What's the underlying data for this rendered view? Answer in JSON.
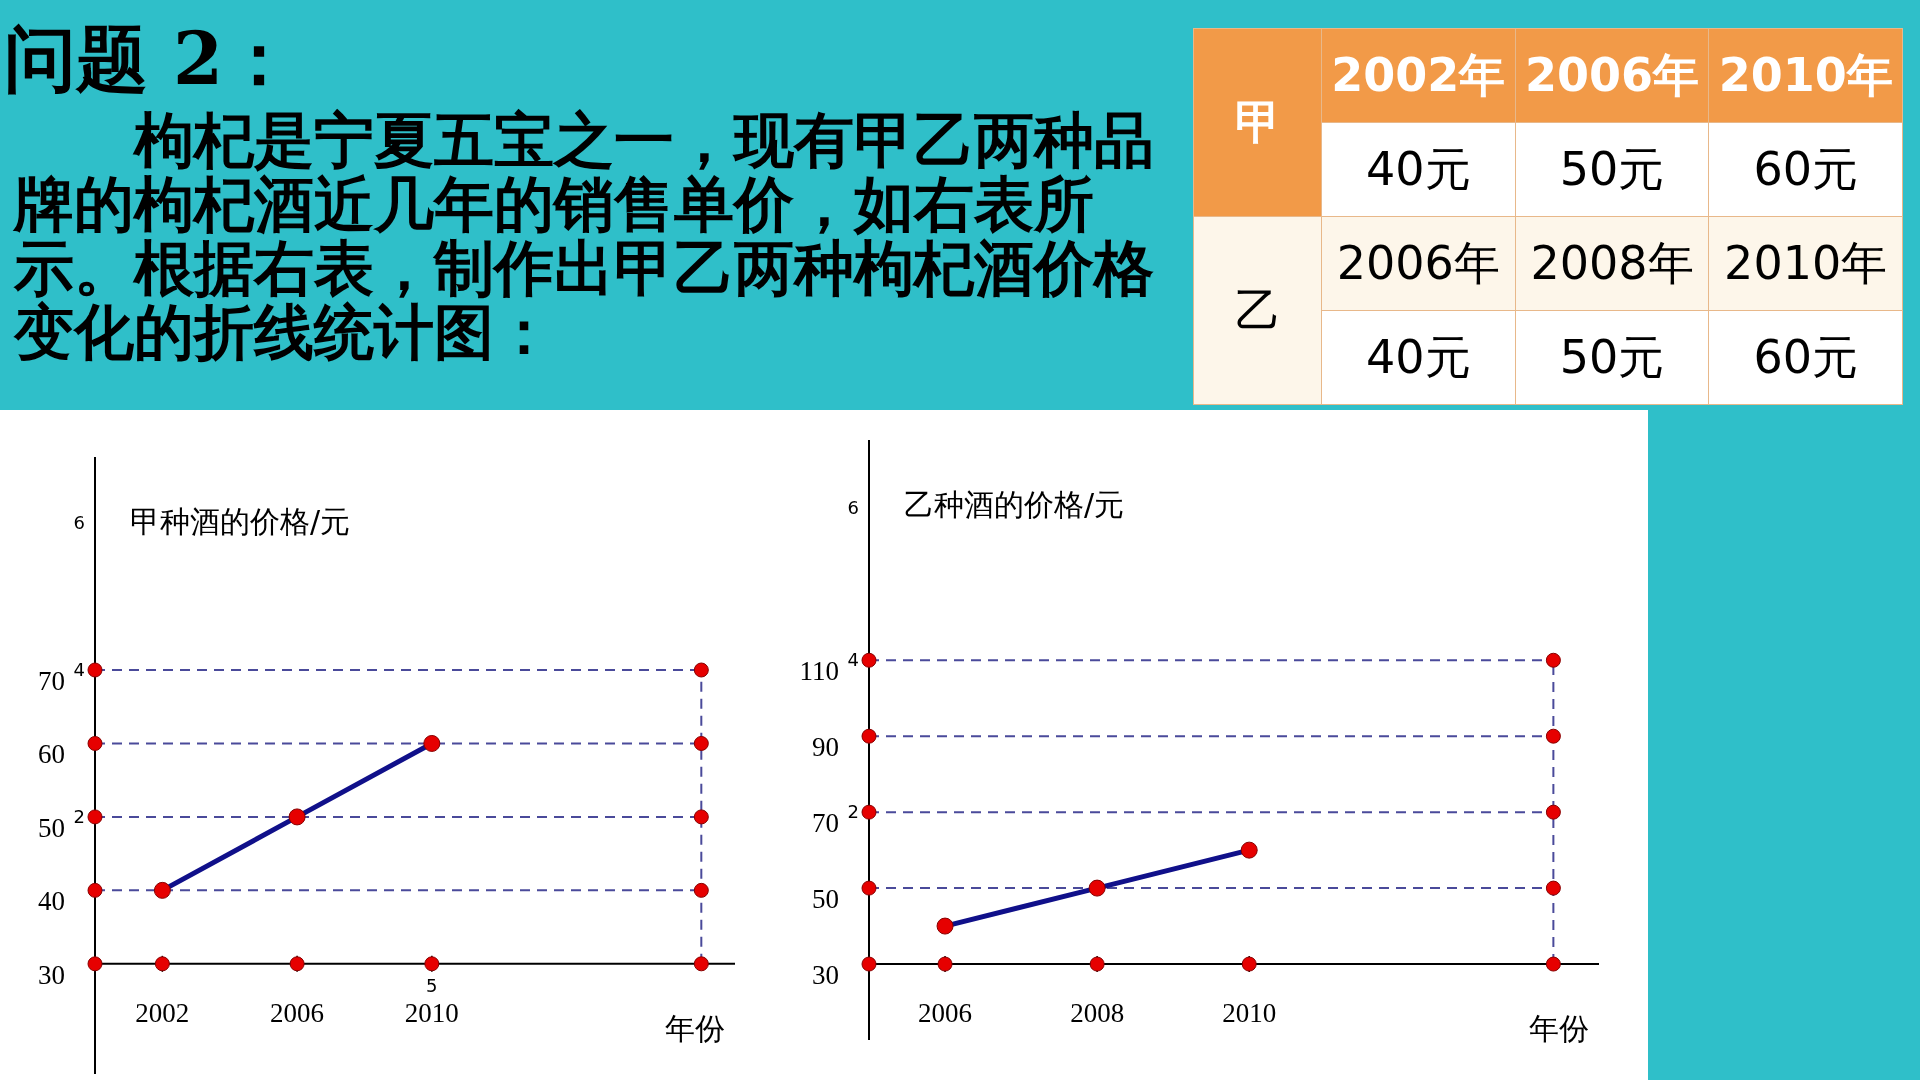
{
  "chart_data": [
    {
      "type": "other",
      "title": "问题 2：",
      "annotations": [
        "枸杞是宁夏五宝之一，现有甲乙两种品牌的枸杞酒近几年的销售单价，如右表所示。根据右表，制作出甲乙两种枸杞酒价格变化的折线统计图："
      ]
    },
    {
      "type": "other",
      "annotations": [
        "甲",
        "2002年",
        "2006年",
        "2010年",
        "40元",
        "50元",
        "60元",
        "乙",
        "2006年",
        "2008年",
        "2010年",
        "40元",
        "50元",
        "60元"
      ]
    },
    {
      "type": "line",
      "ylabel": "甲种酒的价格/元",
      "xlabel": "年份",
      "x": [
        2002,
        2006,
        2010
      ],
      "series": [
        {
          "color": "#10108a",
          "values": [
            40,
            50,
            60
          ]
        }
      ],
      "marker": "circle",
      "line_style": "solid",
      "xlim": [
        2000,
        2019
      ],
      "ylim": [
        15,
        99
      ],
      "xticks": [
        2002,
        2006,
        2010
      ],
      "yticks": [
        30,
        40,
        50,
        60,
        70
      ],
      "ref_lines": [
        {
          "axis": "y",
          "value": 40,
          "color": "#4a4a9a",
          "line_style": "dashed"
        },
        {
          "axis": "y",
          "value": 50,
          "color": "#4a4a9a",
          "line_style": "dashed"
        },
        {
          "axis": "y",
          "value": 60,
          "color": "#4a4a9a",
          "line_style": "dashed"
        },
        {
          "axis": "y",
          "value": 70,
          "color": "#4a4a9a",
          "line_style": "dashed"
        },
        {
          "axis": "x",
          "value": 2018,
          "color": "#4a4a9a",
          "line_style": "dashed"
        }
      ],
      "annotations": [
        "6",
        "4",
        "2",
        "5"
      ]
    },
    {
      "type": "line",
      "ylabel": "乙种酒的价格/元",
      "xlabel": "年份",
      "x": [
        2006,
        2008,
        2010
      ],
      "series": [
        {
          "color": "#10108a",
          "values": [
            40,
            50,
            60
          ]
        }
      ],
      "marker": "circle",
      "line_style": "solid",
      "xlim": [
        2005,
        2014.6
      ],
      "ylim": [
        10,
        168
      ],
      "xticks": [
        2006,
        2008,
        2010
      ],
      "yticks": [
        30,
        50,
        70,
        90,
        110
      ],
      "ref_lines": [
        {
          "axis": "y",
          "value": 50,
          "color": "#4a4a9a",
          "line_style": "dashed"
        },
        {
          "axis": "y",
          "value": 70,
          "color": "#4a4a9a",
          "line_style": "dashed"
        },
        {
          "axis": "y",
          "value": 90,
          "color": "#4a4a9a",
          "line_style": "dashed"
        },
        {
          "axis": "y",
          "value": 110,
          "color": "#4a4a9a",
          "line_style": "dashed"
        },
        {
          "axis": "x",
          "value": 2014,
          "color": "#4a4a9a",
          "line_style": "dashed"
        }
      ],
      "annotations": [
        "6",
        "4",
        "2"
      ]
    }
  ]
}
